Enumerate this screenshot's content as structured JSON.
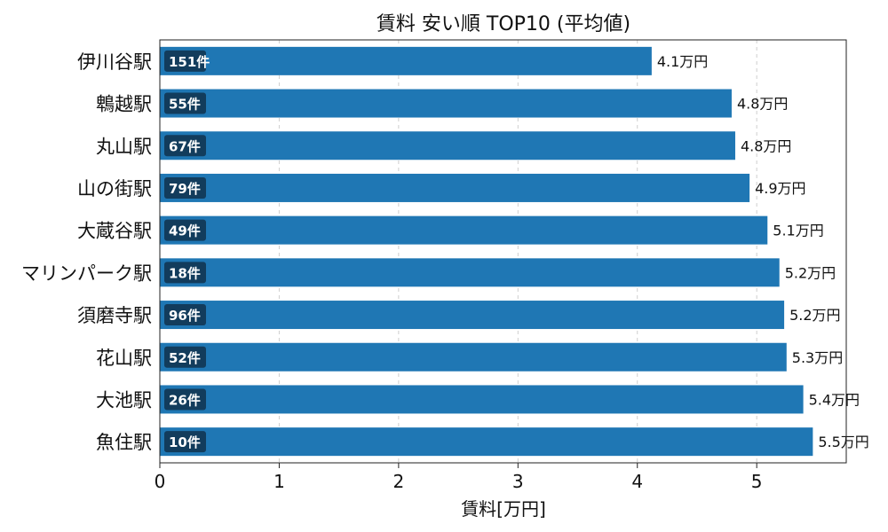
{
  "chart_data": {
    "type": "bar",
    "orientation": "horizontal",
    "title": "賃料 安い順 TOP10 (平均値)",
    "xlabel": "賃料[万円]",
    "ylabel": "",
    "xlim": [
      0,
      5.75
    ],
    "xticks": [
      "0",
      "1",
      "2",
      "3",
      "4",
      "5"
    ],
    "grid": "x-dashed",
    "categories": [
      "伊川谷駅",
      "鵯越駅",
      "丸山駅",
      "山の街駅",
      "大蔵谷駅",
      "マリンパーク駅",
      "須磨寺駅",
      "花山駅",
      "大池駅",
      "魚住駅"
    ],
    "values": [
      4.12,
      4.79,
      4.82,
      4.94,
      5.09,
      5.19,
      5.23,
      5.25,
      5.39,
      5.47
    ],
    "value_labels": [
      "4.1万円",
      "4.8万円",
      "4.8万円",
      "4.9万円",
      "5.1万円",
      "5.2万円",
      "5.2万円",
      "5.3万円",
      "5.4万円",
      "5.5万円"
    ],
    "count_labels": [
      "151件",
      "55件",
      "67件",
      "79件",
      "49件",
      "18件",
      "96件",
      "52件",
      "26件",
      "10件"
    ],
    "colors": {
      "bar": "#1f77b4",
      "badge": "#123c5c",
      "grid": "#cfcfcf",
      "axis": "#222222",
      "text": "#111111",
      "badge_text": "#ffffff"
    }
  }
}
